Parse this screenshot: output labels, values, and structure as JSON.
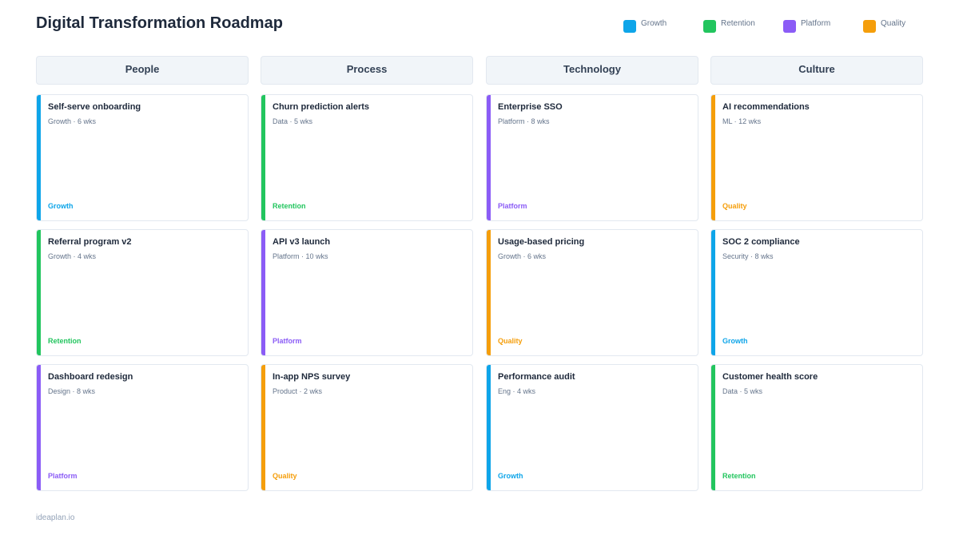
{
  "title": "Digital Transformation Roadmap",
  "colors": {
    "Growth": "#0ea5e9",
    "Retention": "#22c55e",
    "Platform": "#8b5cf6",
    "Quality": "#f59e0b"
  },
  "legend": [
    {
      "label": "Growth",
      "color": "#0ea5e9"
    },
    {
      "label": "Retention",
      "color": "#22c55e"
    },
    {
      "label": "Platform",
      "color": "#8b5cf6"
    },
    {
      "label": "Quality",
      "color": "#f59e0b"
    }
  ],
  "columns": [
    {
      "name": "People",
      "cards": [
        {
          "title": "Self-serve onboarding",
          "meta": "Growth · 6 wks",
          "tag": "Growth"
        },
        {
          "title": "Referral program v2",
          "meta": "Growth · 4 wks",
          "tag": "Retention"
        },
        {
          "title": "Dashboard redesign",
          "meta": "Design · 8 wks",
          "tag": "Platform"
        }
      ]
    },
    {
      "name": "Process",
      "cards": [
        {
          "title": "Churn prediction alerts",
          "meta": "Data · 5 wks",
          "tag": "Retention"
        },
        {
          "title": "API v3 launch",
          "meta": "Platform · 10 wks",
          "tag": "Platform"
        },
        {
          "title": "In-app NPS survey",
          "meta": "Product · 2 wks",
          "tag": "Quality"
        }
      ]
    },
    {
      "name": "Technology",
      "cards": [
        {
          "title": "Enterprise SSO",
          "meta": "Platform · 8 wks",
          "tag": "Platform"
        },
        {
          "title": "Usage-based pricing",
          "meta": "Growth · 6 wks",
          "tag": "Quality"
        },
        {
          "title": "Performance audit",
          "meta": "Eng · 4 wks",
          "tag": "Growth"
        }
      ]
    },
    {
      "name": "Culture",
      "cards": [
        {
          "title": "AI recommendations",
          "meta": "ML · 12 wks",
          "tag": "Quality"
        },
        {
          "title": "SOC 2 compliance",
          "meta": "Security · 8 wks",
          "tag": "Growth"
        },
        {
          "title": "Customer health score",
          "meta": "Data · 5 wks",
          "tag": "Retention"
        }
      ]
    }
  ],
  "footer": "ideaplan.io"
}
